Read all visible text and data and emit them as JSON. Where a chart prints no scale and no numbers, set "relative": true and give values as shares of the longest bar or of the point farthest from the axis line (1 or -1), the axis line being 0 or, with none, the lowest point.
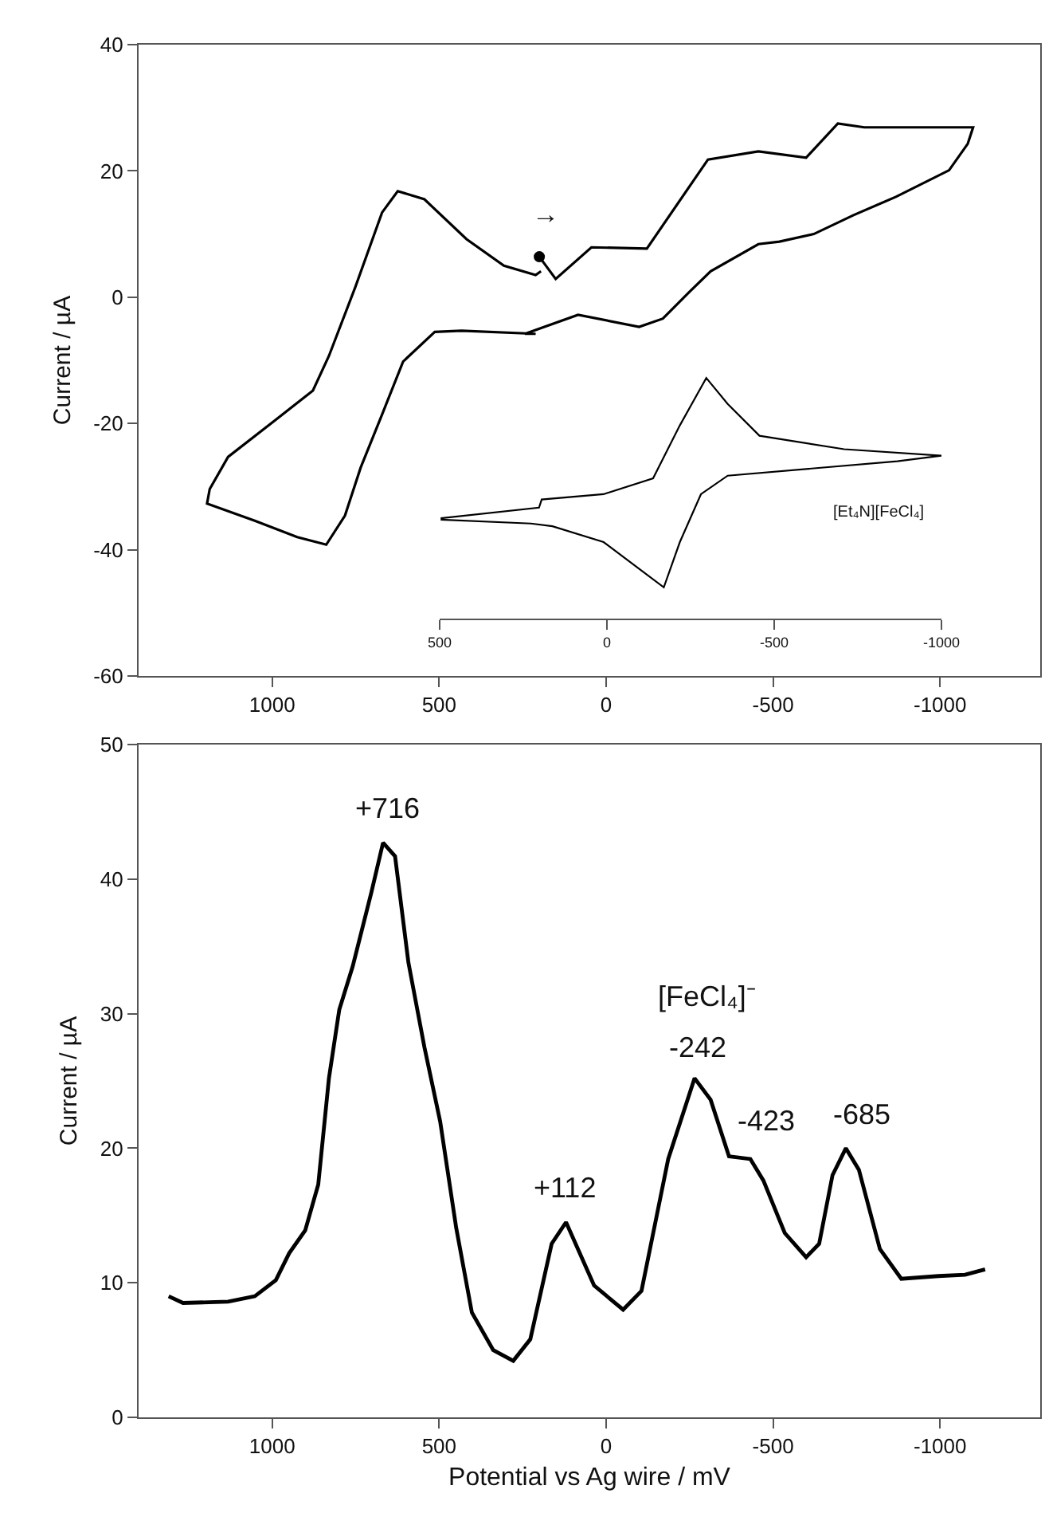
{
  "chart_data": [
    {
      "type": "line",
      "ylabel": "Current / µA",
      "xlim": [
        1400,
        -1300
      ],
      "xticks": [
        1000,
        500,
        0,
        -500,
        -1000
      ],
      "ylim": [
        -60,
        40
      ],
      "yticks": [
        -60,
        -40,
        -20,
        0,
        20,
        40
      ],
      "series": [
        {
          "color": "#000000",
          "x": [
            200,
            151,
            44,
            -122,
            -305,
            -456,
            -599,
            -694,
            -773,
            -1099,
            -1083,
            -1027,
            -868,
            -741,
            -622,
            -519,
            -456,
            -313,
            -249,
            -170,
            -99,
            84,
            243,
            211,
            433,
            513,
            608,
            671,
            735,
            782,
            838,
            925,
            1052,
            1195,
            1187,
            1132,
            989,
            878,
            830,
            751,
            671,
            624,
            544,
            418,
            306,
            211,
            195
          ],
          "values": [
            6.4,
            2.9,
            7.9,
            7.7,
            21.8,
            23.1,
            22.1,
            27.5,
            26.9,
            26.9,
            24.3,
            20.1,
            15.9,
            13.0,
            10.0,
            8.8,
            8.4,
            4.1,
            0.8,
            -3.4,
            -4.7,
            -2.8,
            -5.8,
            -5.8,
            -5.3,
            -5.5,
            -10.2,
            -18.6,
            -27.0,
            -34.6,
            -39.2,
            -38.0,
            -35.4,
            -32.7,
            -30.4,
            -25.3,
            -19.4,
            -14.8,
            -9.3,
            1.6,
            13.4,
            16.8,
            15.5,
            9.2,
            5.0,
            3.5,
            4.1
          ]
        },
        {
          "type": "scatter",
          "marker": "circle",
          "color": "#000000",
          "x": [
            200
          ],
          "values": [
            6.4
          ]
        }
      ],
      "annotations": [
        "→"
      ]
    },
    {
      "type": "line",
      "relative": true,
      "xlim": [
        500,
        -1000
      ],
      "xticks": [
        500,
        0,
        -500,
        -1000
      ],
      "tick_labels": "x",
      "series": [
        {
          "color": "#000000",
          "x": [
            497,
            203,
            195,
            10,
            -138,
            -218,
            -297,
            -361,
            -456,
            -709,
            -1000,
            -868,
            -361,
            -281,
            -218,
            -170,
            -106,
            10,
            163,
            227,
            497
          ],
          "values": [
            0.417,
            0.461,
            0.495,
            0.517,
            0.583,
            0.803,
            1.0,
            0.892,
            0.76,
            0.704,
            0.677,
            0.654,
            0.594,
            0.517,
            0.318,
            0.13,
            0.197,
            0.318,
            0.384,
            0.395,
            0.411
          ]
        }
      ],
      "annotations": [
        "[Et₄N][FeCl₄]"
      ]
    },
    {
      "type": "line",
      "xlabel": "Potential vs Ag wire / mV",
      "ylabel": "Current / µA",
      "xlim": [
        1400,
        -1300
      ],
      "xticks": [
        1000,
        500,
        0,
        -500,
        -1000
      ],
      "ylim": [
        0,
        50
      ],
      "yticks": [
        0,
        10,
        20,
        30,
        40,
        50
      ],
      "series": [
        {
          "color": "#000000",
          "x": [
            1310,
            1267,
            1132,
            1052,
            989,
            949,
            901,
            862,
            830,
            799,
            759,
            703,
            668,
            632,
            592,
            544,
            497,
            449,
            402,
            338,
            278,
            227,
            163,
            120,
            36,
            -51,
            -106,
            -186,
            -265,
            -313,
            -368,
            -432,
            -471,
            -535,
            -599,
            -638,
            -678,
            -718,
            -757,
            -820,
            -884,
            -995,
            -1075,
            -1135
          ],
          "values": [
            9.0,
            8.5,
            8.6,
            9.0,
            10.2,
            12.2,
            13.9,
            17.3,
            25.2,
            30.3,
            33.5,
            39.0,
            42.7,
            41.7,
            33.8,
            27.5,
            22.0,
            14.1,
            7.8,
            5.0,
            4.2,
            5.8,
            12.9,
            14.5,
            9.8,
            8.0,
            9.4,
            19.2,
            25.2,
            23.6,
            19.4,
            19.2,
            17.6,
            13.7,
            11.9,
            12.9,
            18.0,
            20.0,
            18.4,
            12.5,
            10.3,
            10.5,
            10.6,
            11.0
          ]
        }
      ],
      "annotations": [
        "+716",
        "+112",
        "[FeCl₄]⁻",
        "-242",
        "-423",
        "-685"
      ]
    }
  ]
}
